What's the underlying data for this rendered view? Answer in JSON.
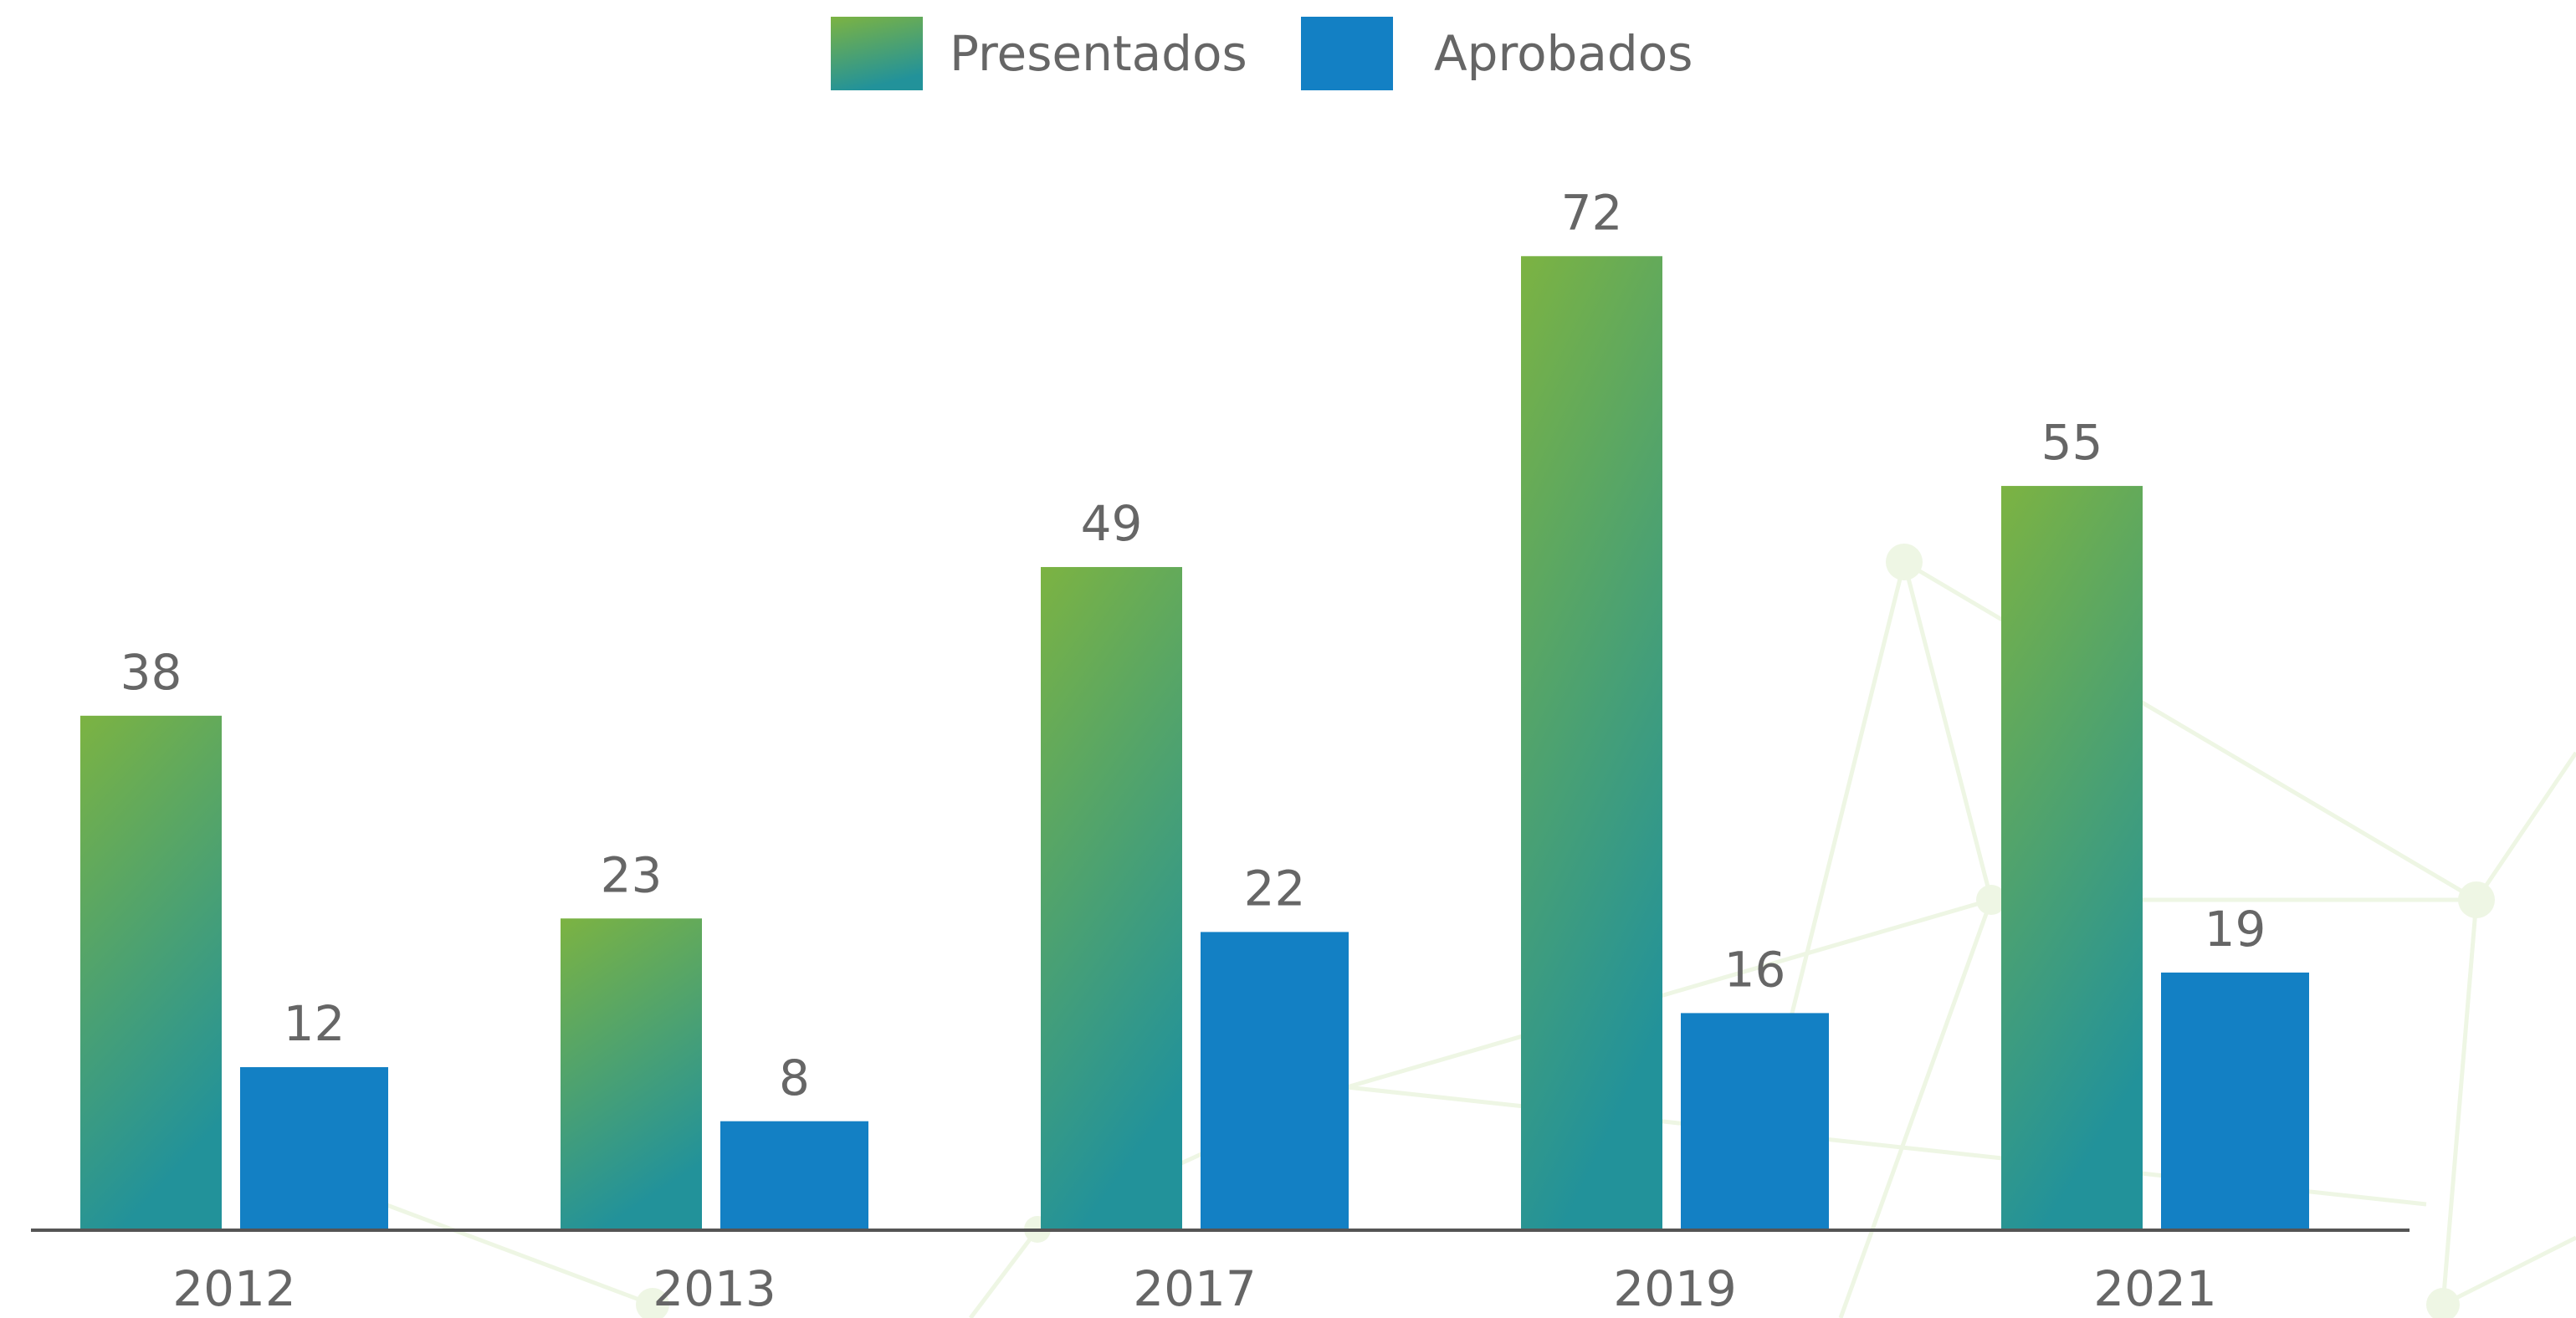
{
  "chart_data": {
    "type": "bar",
    "categories": [
      "2012",
      "2013",
      "2017",
      "2019",
      "2021"
    ],
    "series": [
      {
        "name": "Presentados",
        "color": "#7cb342",
        "values": [
          38,
          23,
          49,
          72,
          55
        ]
      },
      {
        "name": "Aprobados",
        "color": "#1380c4",
        "values": [
          12,
          8,
          22,
          16,
          19
        ]
      }
    ],
    "ylim": [
      0,
      80
    ],
    "legend": "top"
  }
}
